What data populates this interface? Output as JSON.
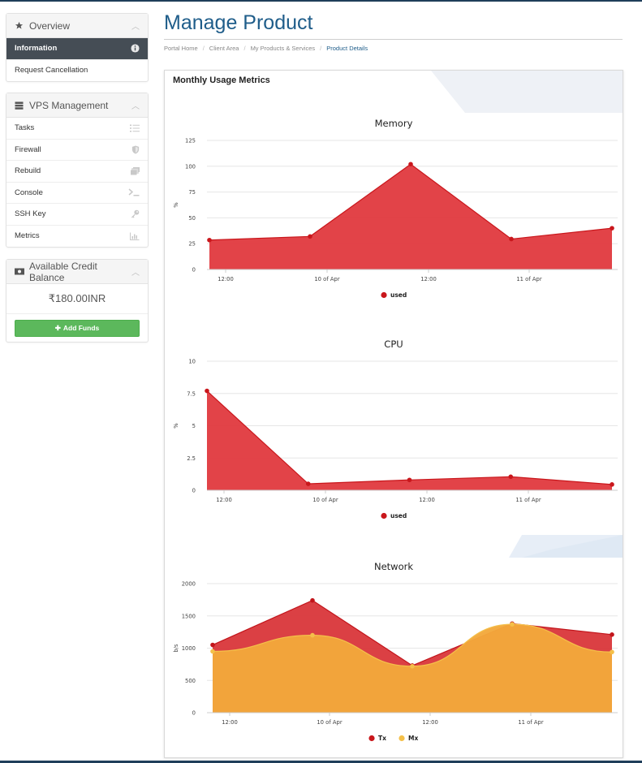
{
  "sidebar": {
    "overview": {
      "title": "Overview",
      "items": [
        {
          "label": "Information"
        },
        {
          "label": "Request Cancellation"
        }
      ]
    },
    "vps": {
      "title": "VPS Management",
      "items": [
        {
          "label": "Tasks",
          "icon": "tasks-icon"
        },
        {
          "label": "Firewall",
          "icon": "shield-icon"
        },
        {
          "label": "Rebuild",
          "icon": "layers-icon"
        },
        {
          "label": "Console",
          "icon": "terminal-icon"
        },
        {
          "label": "SSH Key",
          "icon": "key-icon"
        },
        {
          "label": "Metrics",
          "icon": "chart-icon"
        }
      ]
    },
    "credit": {
      "title": "Available Credit Balance",
      "amount": "₹180.00INR",
      "add_funds": "Add Funds"
    }
  },
  "main": {
    "title": "Manage Product",
    "breadcrumb": [
      "Portal Home",
      "Client Area",
      "My Products & Services",
      "Product Details"
    ],
    "card_title": "Monthly Usage Metrics"
  },
  "colors": {
    "accent": "#1f5d8a",
    "used": "#e0393e",
    "used_line": "#c9171c",
    "tx": "#d9363a",
    "mx": "#f2a93b",
    "add_funds": "#5cb85c",
    "active_item": "#454d55"
  },
  "chart_data": [
    {
      "type": "area",
      "title": "Memory",
      "ylabel": "%",
      "y_ticks": [
        "0",
        "25",
        "50",
        "75",
        "100",
        "125"
      ],
      "ylim": [
        0,
        125
      ],
      "x_ticks": [
        "12:00",
        "10 of Apr",
        "12:00",
        "11 of Apr"
      ],
      "series": [
        {
          "name": "used",
          "values": [
            28.5,
            32,
            102,
            29.5,
            40
          ]
        }
      ]
    },
    {
      "type": "area",
      "title": "CPU",
      "ylabel": "%",
      "y_ticks": [
        "0",
        "2.5",
        "5",
        "7.5",
        "10"
      ],
      "ylim": [
        0,
        10
      ],
      "x_ticks": [
        "12:00",
        "10 of Apr",
        "12:00",
        "11 of Apr"
      ],
      "series": [
        {
          "name": "used",
          "values": [
            7.7,
            0.5,
            0.8,
            1.05,
            0.45
          ]
        }
      ]
    },
    {
      "type": "area",
      "title": "Network",
      "ylabel": "b/s",
      "y_ticks": [
        "0",
        "500",
        "1000",
        "1500",
        "2000"
      ],
      "ylim": [
        0,
        2000
      ],
      "x_ticks": [
        "12:00",
        "10 of Apr",
        "12:00",
        "11 of Apr"
      ],
      "series": [
        {
          "name": "Tx",
          "values": [
            1050,
            1740,
            730,
            1380,
            1210
          ]
        },
        {
          "name": "Mx",
          "values": [
            950,
            1200,
            720,
            1370,
            940
          ]
        }
      ]
    }
  ]
}
